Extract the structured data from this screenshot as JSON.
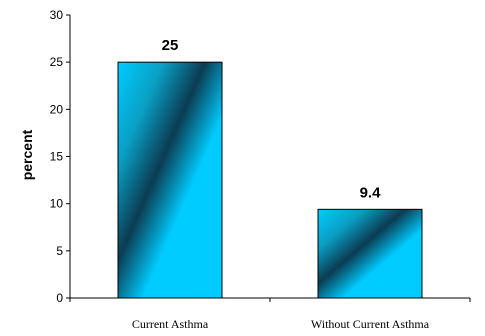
{
  "chart_data": {
    "type": "bar",
    "categories": [
      "Current Asthma",
      "Without Current Asthma"
    ],
    "values": [
      25,
      9.4
    ],
    "data_labels": [
      "25",
      "9.4"
    ],
    "title": "",
    "xlabel": "",
    "ylabel": "percent",
    "ylim": [
      0,
      30
    ],
    "yticks": [
      0,
      5,
      10,
      15,
      20,
      25,
      30
    ],
    "grid": false,
    "legend": "none",
    "bar_colors": {
      "light": "#00ccff",
      "mid": "#0a9fc4",
      "dark": "#0b3c52",
      "stroke": "#000000"
    }
  }
}
